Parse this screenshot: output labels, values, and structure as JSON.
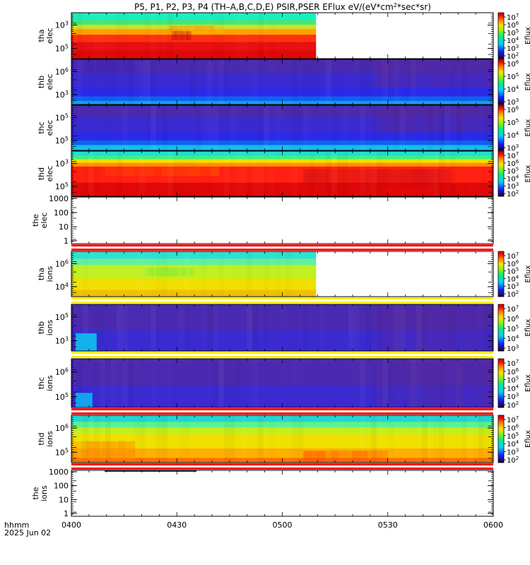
{
  "chart_data": {
    "type": "heatmap",
    "title_parts": [
      "P5, P1, P2, P3, P4 (TH–A,B,C,D,E) PSIR,PSER EFlux eV/(eV*cm",
      "2",
      "*sec*sr)"
    ],
    "x_tick_labels": [
      "0400",
      "0430",
      "0500",
      "0530",
      "0600"
    ],
    "x_corner_labels": [
      "hhmm",
      "2025 Jun 02"
    ],
    "colorbar_label": "Eflux",
    "panels": [
      {
        "id": "tha-elec",
        "label": [
          "tha",
          "elec"
        ],
        "kind": "spectrogram",
        "y_ticks": [
          {
            "base": "10",
            "exp": "3"
          },
          {
            "base": "10",
            "exp": "5"
          }
        ],
        "colorbar_ticks": [
          {
            "exp": "7"
          },
          {
            "exp": "6"
          },
          {
            "exp": "5"
          },
          {
            "exp": "4"
          },
          {
            "exp": "3"
          },
          {
            "exp": "2"
          }
        ],
        "data_end_frac": 0.58,
        "bands": [
          [
            0.0,
            0.14,
            "#19f0c0"
          ],
          [
            0.14,
            0.26,
            "#40e880"
          ],
          [
            0.26,
            0.36,
            "#d0e020"
          ],
          [
            0.36,
            0.48,
            "#ffa000"
          ],
          [
            0.48,
            0.64,
            "#ff3010"
          ],
          [
            0.64,
            0.82,
            "#e81010"
          ],
          [
            0.82,
            1.0,
            "#e00808"
          ]
        ],
        "variations": [
          [
            0.28,
            0.42,
            "#ff8800",
            0.4,
            0.58,
            0.62
          ],
          [
            0.33,
            0.45,
            "#ffc000",
            0.45,
            0.62,
            0.55
          ],
          [
            0.4,
            0.6,
            "#b00010",
            0.41,
            0.49,
            0.45
          ]
        ]
      },
      {
        "id": "thb-elec",
        "label": [
          "thb",
          "elec"
        ],
        "kind": "spectrogram",
        "y_ticks": [
          {
            "base": "10",
            "exp": "6"
          },
          {
            "base": "10",
            "exp": "3"
          }
        ],
        "colorbar_ticks": [
          {
            "exp": "6"
          },
          {
            "exp": "5"
          },
          {
            "exp": "4"
          },
          {
            "exp": "3"
          }
        ],
        "data_end_frac": 1.0,
        "bands": [
          [
            0.0,
            0.3,
            "#4a2ab0"
          ],
          [
            0.3,
            0.62,
            "#3a2ad0"
          ],
          [
            0.62,
            0.82,
            "#2a2ae8"
          ],
          [
            0.82,
            0.92,
            "#1060f0"
          ],
          [
            0.92,
            1.0,
            "#10a0f0"
          ]
        ],
        "variations": [
          [
            0.0,
            0.62,
            "#5a2898",
            0.72,
            1.0,
            0.55
          ],
          [
            0.0,
            0.3,
            "#4020c0",
            0.0,
            0.15,
            0.5
          ]
        ]
      },
      {
        "id": "thc-elec",
        "label": [
          "thc",
          "elec"
        ],
        "kind": "spectrogram",
        "y_ticks": [
          {
            "base": "10",
            "exp": "5"
          },
          {
            "base": "10",
            "exp": "5"
          }
        ],
        "colorbar_ticks": [
          {
            "exp": "6"
          },
          {
            "exp": "5"
          },
          {
            "exp": "4"
          },
          {
            "exp": "3"
          }
        ],
        "data_end_frac": 1.0,
        "bands": [
          [
            0.0,
            0.28,
            "#4a2ab0"
          ],
          [
            0.28,
            0.6,
            "#3a2ad0"
          ],
          [
            0.6,
            0.78,
            "#2a2ae8"
          ],
          [
            0.78,
            0.88,
            "#1060f0"
          ],
          [
            0.88,
            1.0,
            "#10c0f0"
          ]
        ],
        "variations": [
          [
            0.0,
            0.6,
            "#5a2898",
            0.72,
            1.0,
            0.55
          ]
        ]
      },
      {
        "id": "thd-elec",
        "label": [
          "thd",
          "elec"
        ],
        "kind": "spectrogram",
        "y_ticks": [
          {
            "base": "10",
            "exp": "3"
          },
          {
            "base": "10",
            "exp": "5"
          }
        ],
        "colorbar_ticks": [
          {
            "exp": "7"
          },
          {
            "exp": "6"
          },
          {
            "exp": "5"
          },
          {
            "exp": "4"
          },
          {
            "exp": "3"
          },
          {
            "exp": "2"
          }
        ],
        "data_end_frac": 1.0,
        "bands": [
          [
            0.0,
            0.1,
            "#20e0d0"
          ],
          [
            0.1,
            0.18,
            "#40f080"
          ],
          [
            0.18,
            0.26,
            "#f0e000"
          ],
          [
            0.26,
            0.34,
            "#ff9000"
          ],
          [
            0.34,
            0.7,
            "#ff2010"
          ],
          [
            0.7,
            1.0,
            "#e00808"
          ]
        ],
        "variations": [
          [
            0.34,
            0.55,
            "#ff5000",
            0.08,
            0.35,
            0.6
          ],
          [
            0.4,
            0.75,
            "#c00818",
            0.55,
            0.9,
            0.45
          ]
        ]
      },
      {
        "id": "the-elec",
        "label": [
          "the",
          "elec"
        ],
        "kind": "empty",
        "y_ticks": [
          {
            "base": "1000"
          },
          {
            "base": "100"
          },
          {
            "base": "10"
          },
          {
            "base": "1"
          }
        ],
        "colorbar_ticks": []
      },
      {
        "id": "tha-ions",
        "label": [
          "tha",
          "ions"
        ],
        "kind": "spectrogram",
        "y_ticks": [
          {
            "base": "10",
            "exp": "6"
          },
          {
            "base": "10",
            "exp": "4"
          }
        ],
        "colorbar_ticks": [
          {
            "exp": "7"
          },
          {
            "exp": "6"
          },
          {
            "exp": "5"
          },
          {
            "exp": "4"
          },
          {
            "exp": "3"
          },
          {
            "exp": "2"
          }
        ],
        "data_end_frac": 0.58,
        "bands": [
          [
            0.0,
            0.16,
            "#30e0d0"
          ],
          [
            0.16,
            0.3,
            "#60f0a0"
          ],
          [
            0.3,
            0.6,
            "#c0f020"
          ],
          [
            0.6,
            0.85,
            "#f0e000"
          ],
          [
            0.85,
            1.0,
            "#f0c000"
          ]
        ],
        "variations": [
          [
            0.35,
            0.55,
            "#80e840",
            0.3,
            0.5,
            0.6
          ]
        ]
      },
      {
        "id": "thb-ions",
        "label": [
          "thb",
          "ions"
        ],
        "kind": "spectrogram",
        "y_ticks": [
          {
            "base": "10",
            "exp": "5"
          },
          {
            "base": "10",
            "exp": "3"
          }
        ],
        "colorbar_ticks": [
          {
            "exp": "7"
          },
          {
            "exp": "6"
          },
          {
            "exp": "5"
          },
          {
            "exp": "4"
          },
          {
            "exp": "3"
          }
        ],
        "data_end_frac": 1.0,
        "bands": [
          [
            0.0,
            0.55,
            "#4a2ab0"
          ],
          [
            0.55,
            1.0,
            "#3a2ad0"
          ]
        ],
        "variations": [
          [
            0.0,
            1.0,
            "#5a2898",
            0.72,
            1.0,
            0.5
          ]
        ],
        "burst": {
          "x": [
            0.01,
            0.06
          ],
          "y": [
            0.62,
            1.0
          ],
          "color": "#10c0f0"
        }
      },
      {
        "id": "thc-ions",
        "label": [
          "thc",
          "ions"
        ],
        "kind": "spectrogram",
        "y_ticks": [
          {
            "base": "10",
            "exp": "6"
          },
          {
            "base": "10",
            "exp": "5"
          }
        ],
        "colorbar_ticks": [
          {
            "exp": "7"
          },
          {
            "exp": "6"
          },
          {
            "exp": "5"
          },
          {
            "exp": "4"
          },
          {
            "exp": "3"
          },
          {
            "exp": "2"
          }
        ],
        "data_end_frac": 1.0,
        "bands": [
          [
            0.0,
            0.55,
            "#4a2ab0"
          ],
          [
            0.55,
            1.0,
            "#3a2ad0"
          ]
        ],
        "variations": [
          [
            0.0,
            1.0,
            "#5a2898",
            0.72,
            1.0,
            0.5
          ]
        ],
        "burst": {
          "x": [
            0.01,
            0.05
          ],
          "y": [
            0.7,
            1.0
          ],
          "color": "#10b0f0"
        }
      },
      {
        "id": "thd-ions",
        "label": [
          "thd",
          "ions"
        ],
        "kind": "spectrogram",
        "y_ticks": [
          {
            "base": "10",
            "exp": "6"
          },
          {
            "base": "10",
            "exp": "5"
          }
        ],
        "colorbar_ticks": [
          {
            "exp": "7"
          },
          {
            "exp": "6"
          },
          {
            "exp": "5"
          },
          {
            "exp": "4"
          },
          {
            "exp": "3"
          },
          {
            "exp": "2"
          }
        ],
        "data_end_frac": 1.0,
        "bands": [
          [
            0.0,
            0.14,
            "#20d8d0"
          ],
          [
            0.14,
            0.26,
            "#60f090"
          ],
          [
            0.26,
            0.4,
            "#c0f020"
          ],
          [
            0.4,
            0.7,
            "#f0e000"
          ],
          [
            0.7,
            0.9,
            "#ffb000"
          ],
          [
            0.9,
            1.0,
            "#ff7000"
          ]
        ],
        "variations": [
          [
            0.55,
            0.95,
            "#ff8000",
            0.0,
            0.15,
            0.6
          ],
          [
            0.75,
            1.0,
            "#ff4000",
            0.55,
            0.75,
            0.5
          ]
        ]
      },
      {
        "id": "the-ions",
        "label": [
          "the",
          "ions"
        ],
        "kind": "empty",
        "y_ticks": [
          {
            "base": "1000"
          },
          {
            "base": "100"
          },
          {
            "base": "10"
          },
          {
            "base": "1"
          }
        ],
        "colorbar_ticks": []
      }
    ],
    "separators": [
      {
        "after": "the-elec",
        "colors": [
          "#ff0000",
          "#ffffff",
          "#ff0000"
        ]
      },
      {
        "after": "tha-ions",
        "colors": [
          "#ffee00",
          "#ffffff",
          "#ffee00"
        ]
      },
      {
        "after": "thb-ions",
        "colors": [
          "#ffee00",
          "#ffffff",
          "#ffee00"
        ]
      },
      {
        "after": "thc-ions",
        "colors": [
          "#ff0000",
          "#ffffff",
          "#ff0000"
        ]
      },
      {
        "after": "thd-ions",
        "colors": [
          "#ff0000",
          "#ffffff",
          "#ff0000"
        ]
      }
    ]
  }
}
